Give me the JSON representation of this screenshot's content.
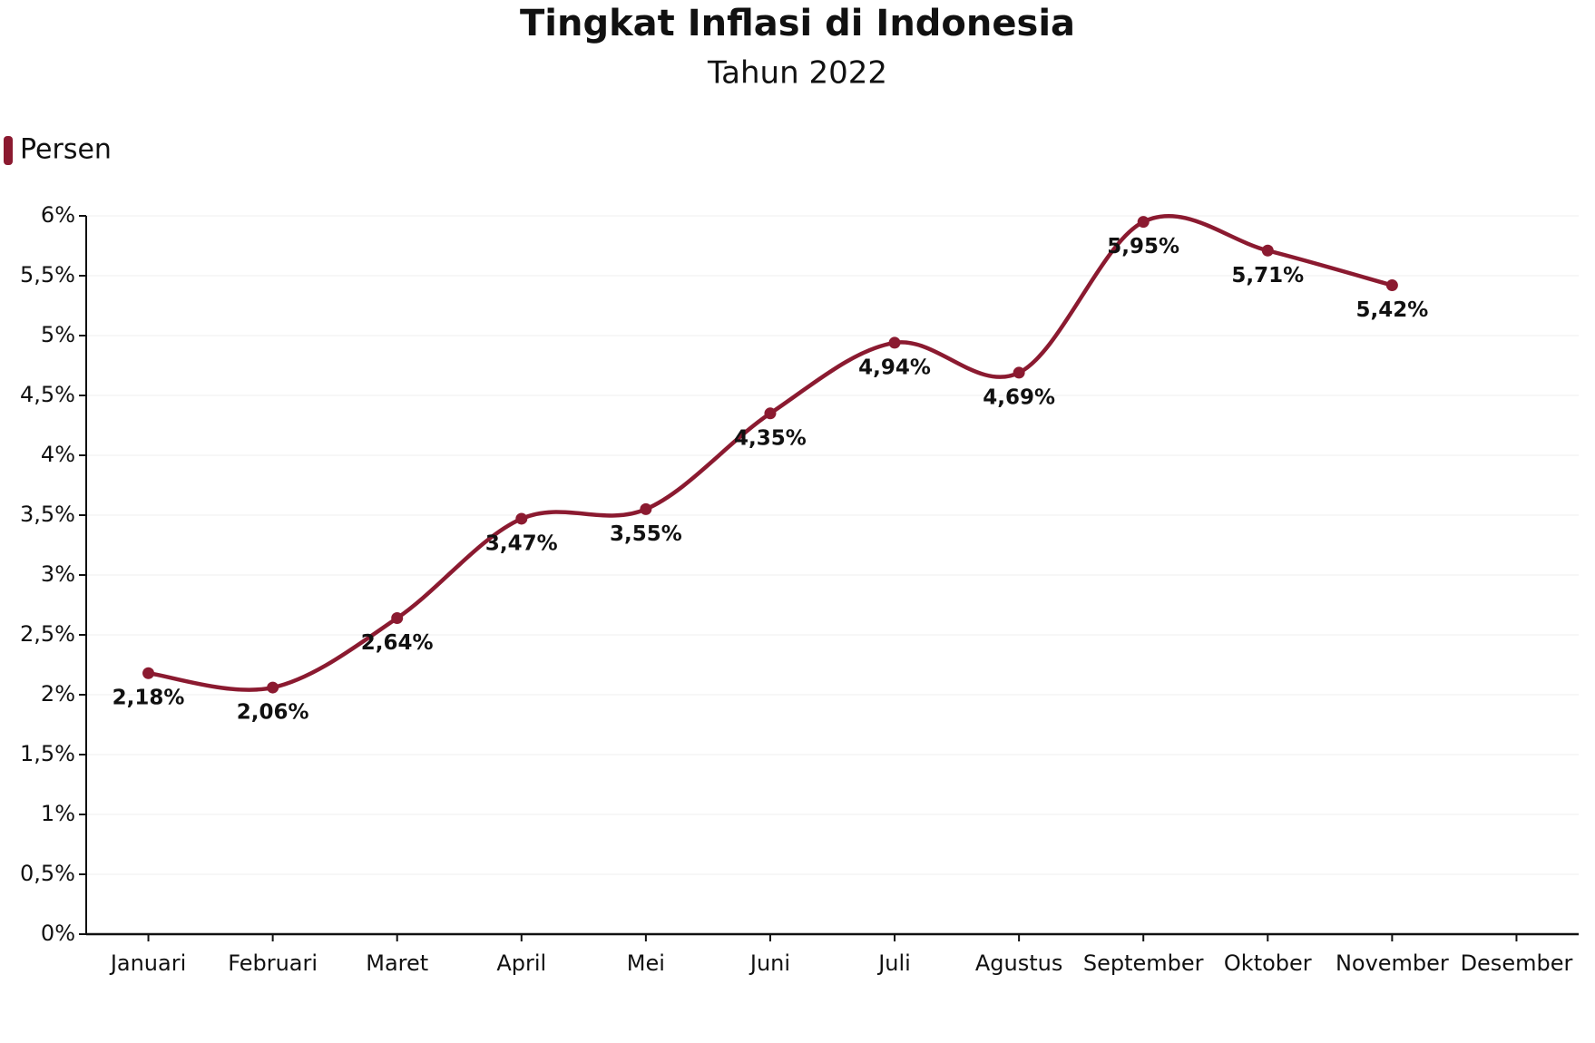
{
  "chart_data": {
    "type": "line",
    "title": "Tingkat Inflasi di Indonesia",
    "subtitle": "Tahun 2022",
    "categories": [
      "Januari",
      "Februari",
      "Maret",
      "April",
      "Mei",
      "Juni",
      "Juli",
      "Agustus",
      "September",
      "Oktober",
      "November",
      "Desember"
    ],
    "series": [
      {
        "name": "Persen",
        "color": "#8b1a30",
        "values": [
          2.18,
          2.06,
          2.64,
          3.47,
          3.55,
          4.35,
          4.94,
          4.69,
          5.95,
          5.71,
          5.42,
          null
        ],
        "value_labels": [
          "2,18%",
          "2,06%",
          "2,64%",
          "3,47%",
          "3,55%",
          "4,35%",
          "4,94%",
          "4,69%",
          "5,95%",
          "5,71%",
          "5,42%",
          null
        ]
      }
    ],
    "ylim": [
      0,
      6
    ],
    "yticks": [
      {
        "value": 0,
        "label": "0%"
      },
      {
        "value": 0.5,
        "label": "0,5%"
      },
      {
        "value": 1,
        "label": "1%"
      },
      {
        "value": 1.5,
        "label": "1,5%"
      },
      {
        "value": 2,
        "label": "2%"
      },
      {
        "value": 2.5,
        "label": "2,5%"
      },
      {
        "value": 3,
        "label": "3%"
      },
      {
        "value": 3.5,
        "label": "3,5%"
      },
      {
        "value": 4,
        "label": "4%"
      },
      {
        "value": 4.5,
        "label": "4,5%"
      },
      {
        "value": 5,
        "label": "5%"
      },
      {
        "value": 5.5,
        "label": "5,5%"
      },
      {
        "value": 6,
        "label": "6%"
      }
    ],
    "grid": true,
    "legend": "top-left"
  }
}
